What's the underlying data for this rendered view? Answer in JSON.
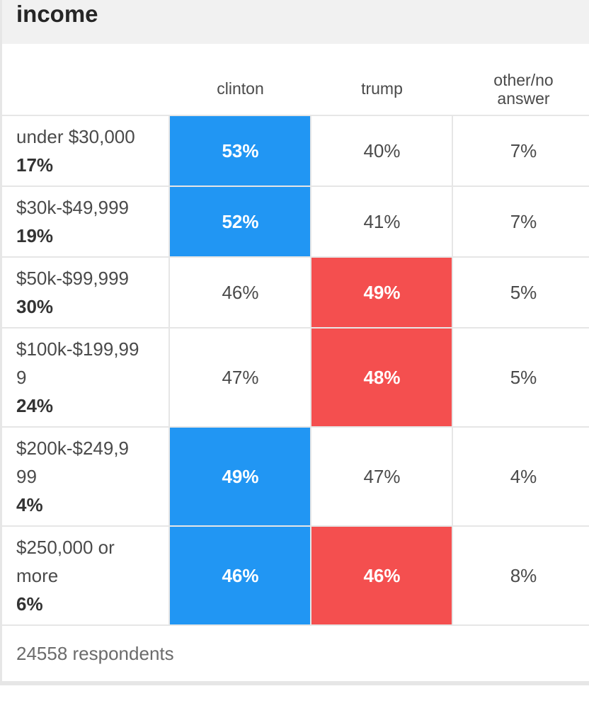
{
  "title": "income",
  "columns": {
    "clinton": "clinton",
    "trump": "trump",
    "other_line1": "other/no",
    "other_line2": "answer"
  },
  "colors": {
    "clinton_win": "#2196f3",
    "trump_win": "#f44f4f"
  },
  "chart_data": {
    "type": "table",
    "title": "income",
    "columns": [
      "clinton",
      "trump",
      "other/no answer"
    ],
    "rows": [
      {
        "group_lines": [
          "under $30,000"
        ],
        "share": "17%",
        "clinton": "53%",
        "trump": "40%",
        "other": "7%",
        "winner": "clinton"
      },
      {
        "group_lines": [
          "$30k-$49,999"
        ],
        "share": "19%",
        "clinton": "52%",
        "trump": "41%",
        "other": "7%",
        "winner": "clinton"
      },
      {
        "group_lines": [
          "$50k-$99,999"
        ],
        "share": "30%",
        "clinton": "46%",
        "trump": "49%",
        "other": "5%",
        "winner": "trump"
      },
      {
        "group_lines": [
          "$100k-$199,99",
          "9"
        ],
        "share": "24%",
        "clinton": "47%",
        "trump": "48%",
        "other": "5%",
        "winner": "trump"
      },
      {
        "group_lines": [
          "$200k-$249,9",
          "99"
        ],
        "share": "4%",
        "clinton": "49%",
        "trump": "47%",
        "other": "4%",
        "winner": "clinton"
      },
      {
        "group_lines": [
          "$250,000 or",
          "more"
        ],
        "share": "6%",
        "clinton": "46%",
        "trump": "46%",
        "other": "8%",
        "winner": "tie"
      }
    ]
  },
  "footer": "24558 respondents"
}
